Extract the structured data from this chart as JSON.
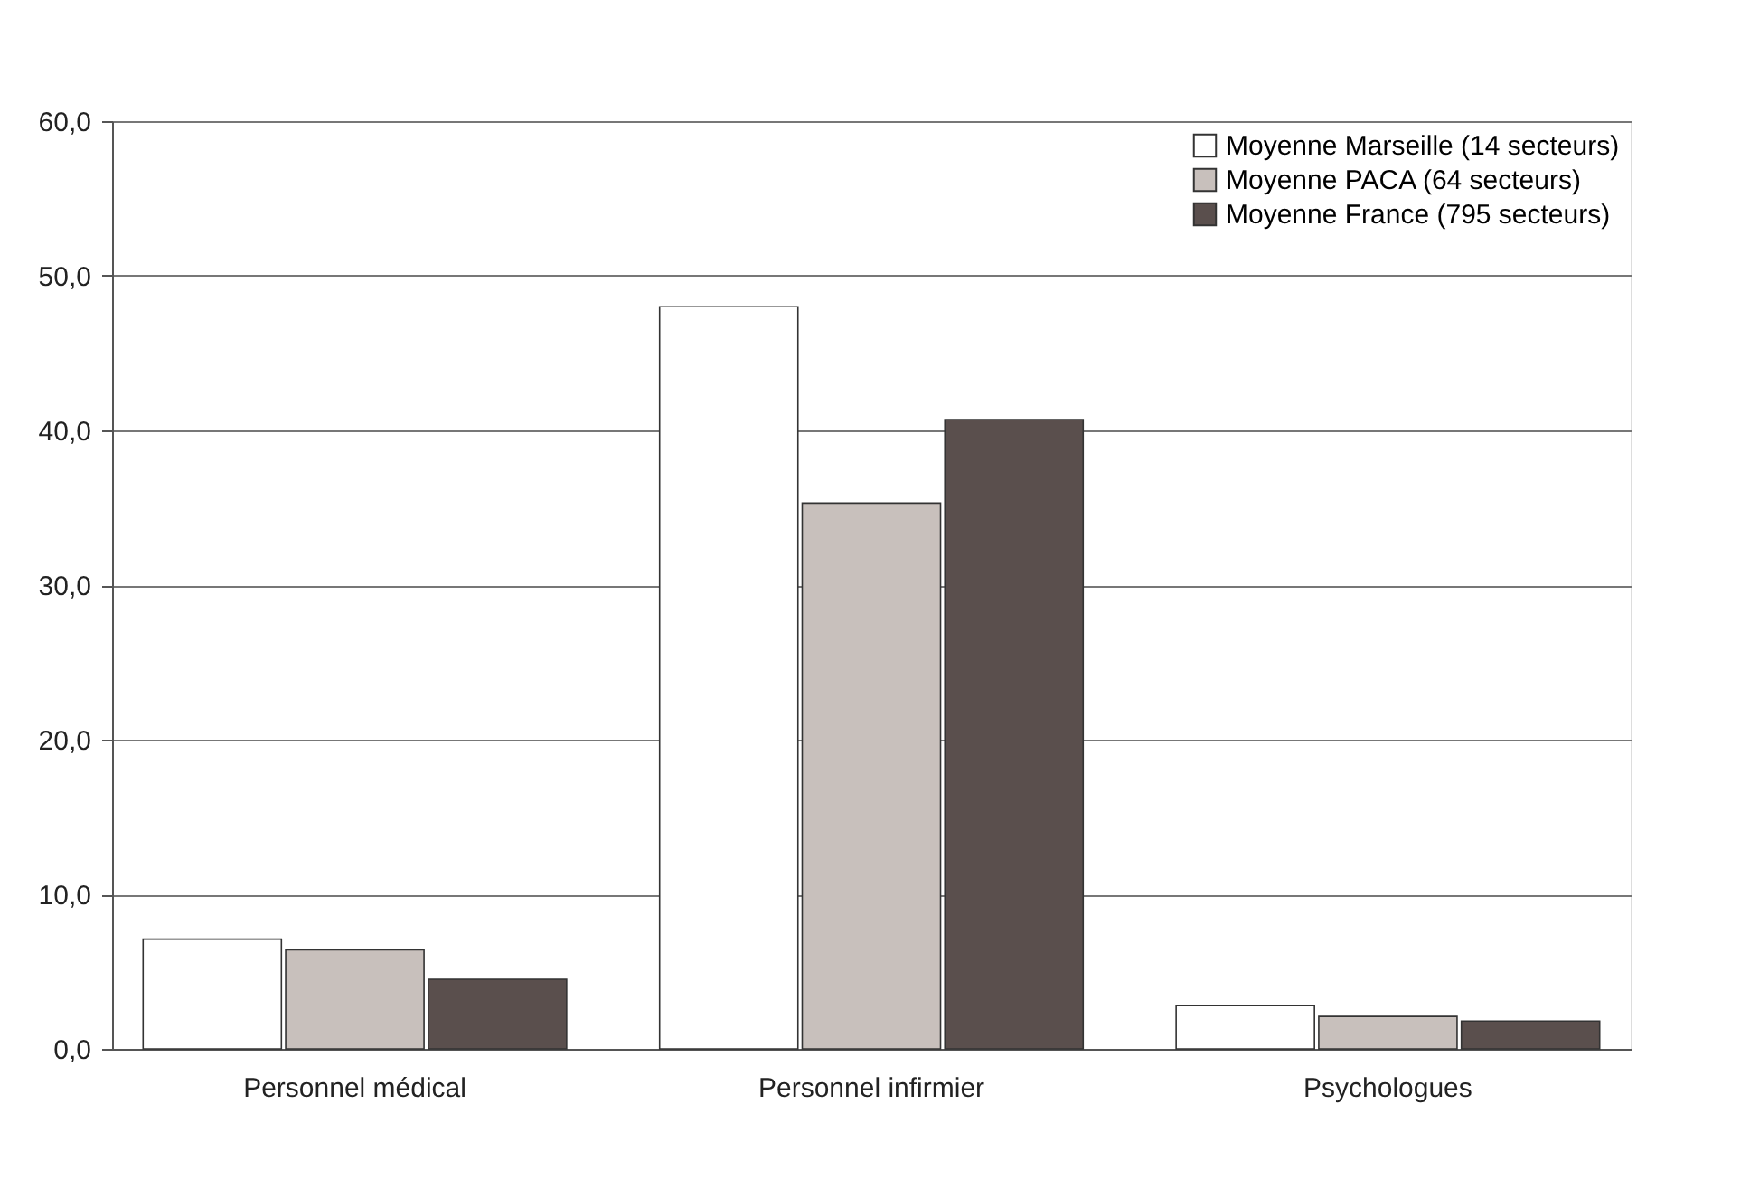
{
  "chart_data": {
    "type": "bar",
    "categories": [
      "Personnel médical",
      "Personnel infirmier",
      "Psychologues"
    ],
    "series": [
      {
        "name": "Moyenne Marseille (14 secteurs)",
        "color": "#ffffff",
        "values": [
          7.1,
          48.0,
          2.8
        ]
      },
      {
        "name": "Moyenne PACA (64 secteurs)",
        "color": "#c8c0bc",
        "values": [
          6.4,
          35.3,
          2.1
        ]
      },
      {
        "name": "Moyenne France (795 secteurs)",
        "color": "#5a4f4d",
        "values": [
          4.5,
          40.7,
          1.8
        ]
      }
    ],
    "ylim": [
      0,
      60
    ],
    "yticks": [
      {
        "value": 0,
        "label": "0,0"
      },
      {
        "value": 10,
        "label": "10,0"
      },
      {
        "value": 20,
        "label": "20,0"
      },
      {
        "value": 30,
        "label": "30,0"
      },
      {
        "value": 40,
        "label": "40,0"
      },
      {
        "value": 50,
        "label": "50,0"
      },
      {
        "value": 60,
        "label": "60,0"
      }
    ],
    "grid": "y",
    "legend": "top right"
  }
}
